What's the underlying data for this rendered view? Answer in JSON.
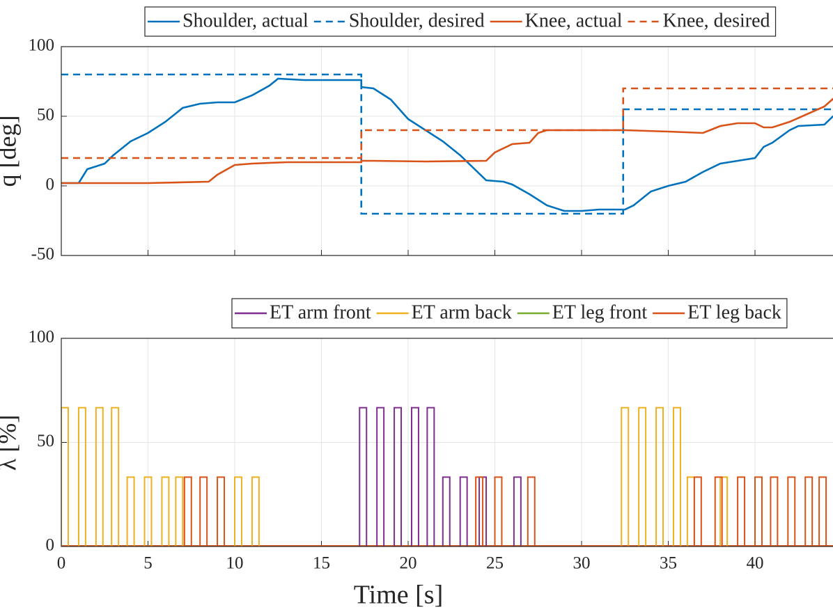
{
  "chart_data": [
    {
      "type": "line",
      "ylabel": "q [deg]",
      "xlim": [
        0,
        45
      ],
      "xticks": [
        0,
        5,
        10,
        15,
        20,
        25,
        30,
        35,
        40,
        45
      ],
      "x_tick_labels": false,
      "ylim": [
        -50,
        100
      ],
      "yticks": [
        -50,
        0,
        50,
        100
      ],
      "grid": true,
      "legend": "top",
      "series": [
        {
          "name": "Shoulder, actual",
          "color": "#0072BD",
          "style": "solid",
          "x": [
            0,
            1,
            1.5,
            2.5,
            3,
            4,
            5,
            6,
            7,
            8,
            9,
            10,
            11,
            12,
            12.5,
            14,
            17.3,
            17.3,
            18,
            19,
            20,
            21,
            22,
            23,
            24,
            24.5,
            25.5,
            26,
            27,
            28,
            29,
            30,
            31,
            32.5,
            33,
            34,
            35,
            36,
            37,
            38,
            39,
            40,
            40.5,
            41,
            42,
            42.5,
            44,
            44.5,
            45
          ],
          "values": [
            2,
            2,
            12,
            16,
            22,
            32,
            38,
            46,
            56,
            59,
            60,
            60,
            65,
            72,
            77,
            76,
            76,
            71,
            70,
            62,
            48,
            40,
            32,
            22,
            10,
            4,
            3,
            1,
            -6,
            -14,
            -18,
            -18,
            -17,
            -17,
            -14,
            -4,
            0,
            3,
            10,
            16,
            18,
            20,
            28,
            31,
            40,
            43,
            44,
            50,
            52
          ]
        },
        {
          "name": "Shoulder, desired",
          "color": "#0072BD",
          "style": "dashed",
          "x": [
            0,
            17.3,
            17.3,
            32.4,
            32.4,
            45
          ],
          "values": [
            80,
            80,
            -20,
            -20,
            55,
            55
          ]
        },
        {
          "name": "Knee, actual",
          "color": "#D95319",
          "style": "solid",
          "x": [
            0,
            5,
            8.5,
            9,
            10,
            11,
            13,
            17.3,
            17.3,
            18,
            21,
            24.5,
            25,
            26,
            27,
            27.5,
            28,
            32.5,
            35,
            37,
            38,
            39,
            40,
            40.5,
            41,
            42,
            44,
            45
          ],
          "values": [
            2,
            2,
            3,
            8,
            15,
            16,
            17,
            17,
            18,
            18,
            17.5,
            18,
            24,
            30,
            31,
            38,
            40,
            40,
            39,
            38,
            43,
            45,
            45,
            42,
            42,
            46,
            57,
            68
          ]
        },
        {
          "name": "Knee, desired",
          "color": "#D95319",
          "style": "dashed",
          "x": [
            0,
            17.3,
            17.3,
            32.4,
            32.4,
            45
          ],
          "values": [
            20,
            20,
            40,
            40,
            70,
            70
          ]
        }
      ]
    },
    {
      "type": "pulse",
      "ylabel": "λ [%]",
      "xlabel": "Time [s]",
      "xlim": [
        0,
        45
      ],
      "xticks": [
        0,
        5,
        10,
        15,
        20,
        25,
        30,
        35,
        40,
        45
      ],
      "x_tick_labels": true,
      "ylim": [
        0,
        100
      ],
      "yticks": [
        0,
        50,
        100
      ],
      "grid": true,
      "legend": "top",
      "series": [
        {
          "name": "ET arm front",
          "color": "#7E2F8E",
          "pulses": [
            [
              17.2,
              17.6,
              66.7
            ],
            [
              18.2,
              18.6,
              66.7
            ],
            [
              19.2,
              19.6,
              66.7
            ],
            [
              20.2,
              20.6,
              66.7
            ],
            [
              21.1,
              21.5,
              66.7
            ],
            [
              22,
              22.4,
              33.3
            ],
            [
              23,
              23.4,
              33.3
            ],
            [
              24.1,
              24.5,
              33.3
            ],
            [
              26.1,
              26.5,
              33.3
            ]
          ]
        },
        {
          "name": "ET arm back",
          "color": "#EDB120",
          "pulses": [
            [
              0,
              0.4,
              66.7
            ],
            [
              1,
              1.4,
              66.7
            ],
            [
              2,
              2.4,
              66.7
            ],
            [
              2.9,
              3.3,
              66.7
            ],
            [
              3.8,
              4.2,
              33.3
            ],
            [
              4.8,
              5.2,
              33.3
            ],
            [
              5.8,
              6.2,
              33.3
            ],
            [
              6.6,
              7.0,
              33.3
            ],
            [
              10,
              10.4,
              33.3
            ],
            [
              11,
              11.4,
              33.3
            ],
            [
              32.3,
              32.7,
              66.7
            ],
            [
              33.3,
              33.7,
              66.7
            ],
            [
              34.3,
              34.7,
              66.7
            ],
            [
              35.3,
              35.7,
              66.7
            ],
            [
              36.1,
              36.5,
              33.3
            ],
            [
              38,
              38.4,
              33.3
            ]
          ]
        },
        {
          "name": "ET leg front",
          "color": "#77AC30",
          "pulses": []
        },
        {
          "name": "ET leg back",
          "color": "#D95319",
          "pulses": [
            [
              7.1,
              7.5,
              33.3
            ],
            [
              8,
              8.4,
              33.3
            ],
            [
              9,
              9.4,
              33.3
            ],
            [
              23.9,
              24.3,
              33.3
            ],
            [
              25,
              25.4,
              33.3
            ],
            [
              26.9,
              27.3,
              33.3
            ],
            [
              36.5,
              36.9,
              33.3
            ],
            [
              37.7,
              38.1,
              33.3
            ],
            [
              39,
              39.4,
              33.3
            ],
            [
              40,
              40.4,
              33.3
            ],
            [
              40.9,
              41.3,
              33.3
            ],
            [
              41.9,
              42.3,
              33.3
            ],
            [
              42.9,
              43.3,
              33.3
            ],
            [
              43.7,
              44.1,
              33.3
            ]
          ]
        }
      ]
    }
  ]
}
